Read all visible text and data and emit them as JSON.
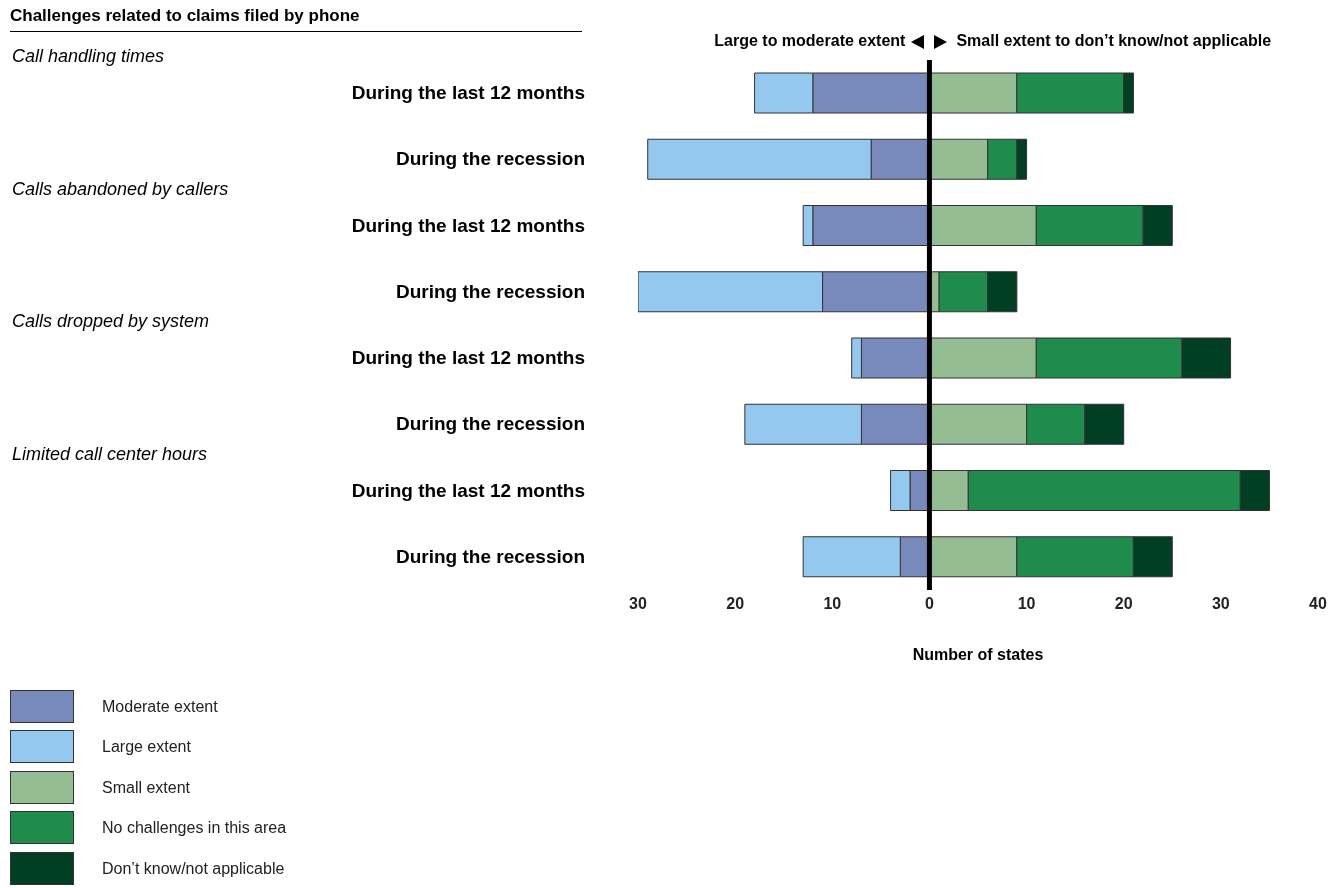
{
  "chart_data": {
    "type": "bar",
    "orientation": "horizontal",
    "stacked": true,
    "title": "Challenges related to claims filed by phone",
    "xlabel": "Number of states",
    "categories": [
      "During the last 12 months",
      "During the recession",
      "During the last 12 months",
      "During the recession",
      "During the last 12 months",
      "During the recession",
      "During the last 12 months",
      "During the recession"
    ],
    "series": [
      {
        "name": "Moderate extent",
        "color": "#7889bb",
        "values": [
          -12,
          -6,
          -12,
          -11,
          -7,
          -7,
          -2,
          -3
        ]
      },
      {
        "name": "Large extent",
        "color": "#95c8ee",
        "values": [
          -6,
          -23,
          -1,
          -19,
          -1,
          -12,
          -2,
          -10
        ]
      },
      {
        "name": "Small extent",
        "color": "#95bd93",
        "values": [
          9,
          6,
          11,
          1,
          11,
          10,
          4,
          9
        ]
      },
      {
        "name": "No challenges in this area",
        "color": "#1f8b4c",
        "values": [
          11,
          3,
          11,
          5,
          15,
          6,
          28,
          12
        ]
      },
      {
        "name": "Don’t know/not applicable",
        "color": "#003f24",
        "values": [
          1,
          1,
          3,
          3,
          5,
          4,
          3,
          4
        ]
      }
    ],
    "xlim": [
      -30,
      40
    ],
    "xticks": [
      {
        "value": -30,
        "label": "30"
      },
      {
        "value": -20,
        "label": "20"
      },
      {
        "value": -10,
        "label": "10"
      },
      0,
      10,
      20,
      30,
      40
    ],
    "ref_lines": [
      {
        "axis": "x",
        "value": 0,
        "color": "#000000"
      }
    ],
    "annotations": [
      "Call handling times",
      "Calls abandoned by callers",
      "Calls dropped by system",
      "Limited call center hours",
      "Large to moderate extent",
      "Small extent to don’t know/not applicable"
    ],
    "legend": "bottom left"
  }
}
